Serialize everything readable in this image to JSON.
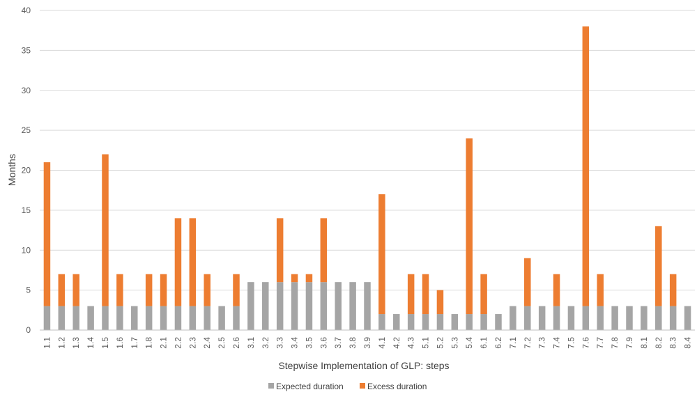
{
  "chart_data": {
    "type": "bar",
    "stacked": true,
    "title": "",
    "xlabel": "Stepwise Implementation of GLP: steps",
    "ylabel": "Months",
    "ylim": [
      0,
      40
    ],
    "yticks": [
      0,
      5,
      10,
      15,
      20,
      25,
      30,
      35,
      40
    ],
    "grid": true,
    "legend_position": "bottom",
    "categories": [
      "1.1",
      "1.2",
      "1.3",
      "1.4",
      "1.5",
      "1.6",
      "1.7",
      "1.8",
      "2.1",
      "2.2",
      "2.3",
      "2.4",
      "2.5",
      "2.6",
      "3.1",
      "3.2",
      "3.3",
      "3.4",
      "3.5",
      "3.6",
      "3.7",
      "3.8",
      "3.9",
      "4.1",
      "4.2",
      "4.3",
      "5.1",
      "5.2",
      "5.3",
      "5.4",
      "6.1",
      "6.2",
      "7.1",
      "7.2",
      "7.3",
      "7.4",
      "7.5",
      "7.6",
      "7.7",
      "7.8",
      "7.9",
      "8.1",
      "8.2",
      "8.3",
      "8.4"
    ],
    "series": [
      {
        "name": "Expected duration",
        "color": "#a5a5a5",
        "values": [
          3,
          3,
          3,
          3,
          3,
          3,
          3,
          3,
          3,
          3,
          3,
          3,
          3,
          3,
          6,
          6,
          6,
          6,
          6,
          6,
          6,
          6,
          6,
          2,
          2,
          2,
          2,
          2,
          2,
          2,
          2,
          2,
          3,
          3,
          3,
          3,
          3,
          3,
          3,
          3,
          3,
          3,
          3,
          3,
          3
        ]
      },
      {
        "name": "Excess duration",
        "color": "#ed7d31",
        "values": [
          18,
          4,
          4,
          0,
          19,
          4,
          0,
          4,
          4,
          11,
          11,
          4,
          0,
          4,
          0,
          0,
          8,
          1,
          1,
          8,
          0,
          0,
          0,
          15,
          0,
          5,
          5,
          3,
          0,
          22,
          5,
          0,
          0,
          6,
          0,
          4,
          0,
          35,
          4,
          0,
          0,
          0,
          10,
          4,
          0
        ]
      }
    ]
  }
}
